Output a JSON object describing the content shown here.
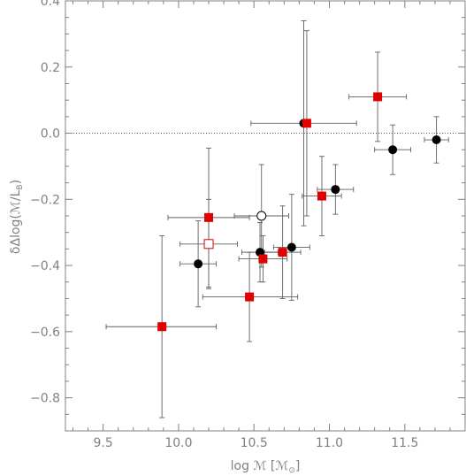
{
  "chart_data": {
    "type": "scatter",
    "title": "",
    "xlabel": "log ℳ [ℳ⊙]",
    "ylabel": "δΔlog(ℳ/L_B)",
    "xlim": [
      9.25,
      11.9
    ],
    "ylim": [
      -0.9,
      0.4
    ],
    "xticks": [
      9.5,
      10.0,
      10.5,
      11.0,
      11.5
    ],
    "xtick_labels": [
      "9.5",
      "10.0",
      "10.5",
      "11.0",
      "11.5"
    ],
    "yticks": [
      0.4,
      0.2,
      0.0,
      -0.2,
      -0.4,
      -0.6,
      -0.8
    ],
    "ytick_labels": [
      "0.4",
      "0.2",
      "0.0",
      "−0.2",
      "−0.4",
      "−0.6",
      "−0.8"
    ],
    "reference_line": {
      "y": 0.0,
      "style": "dotted"
    },
    "grid": false,
    "series": [
      {
        "marker": "filled-circle",
        "color": "#000000",
        "points": [
          {
            "x": 10.13,
            "y": -0.395,
            "xerr": [
              0.12,
              0.12
            ],
            "yerr": [
              0.13,
              0.13
            ]
          },
          {
            "x": 10.54,
            "y": -0.36,
            "xerr": [
              0.12,
              0.12
            ],
            "yerr": [
              0.09,
              0.09
            ]
          },
          {
            "x": 10.75,
            "y": -0.345,
            "xerr": [
              0.12,
              0.12
            ],
            "yerr": [
              0.16,
              0.16
            ]
          },
          {
            "x": 10.83,
            "y": 0.03,
            "xerr": [
              0.35,
              0.35
            ],
            "yerr": [
              0.31,
              0.31
            ]
          },
          {
            "x": 11.04,
            "y": -0.17,
            "xerr": [
              0.12,
              0.12
            ],
            "yerr": [
              0.075,
              0.075
            ]
          },
          {
            "x": 11.42,
            "y": -0.05,
            "xerr": [
              0.12,
              0.12
            ],
            "yerr": [
              0.075,
              0.075
            ]
          },
          {
            "x": 11.71,
            "y": -0.02,
            "xerr": [
              0.08,
              0.08
            ],
            "yerr": [
              0.07,
              0.07
            ]
          }
        ]
      },
      {
        "marker": "open-circle",
        "color": "#000000",
        "points": [
          {
            "x": 10.55,
            "y": -0.25,
            "xerr": [
              0.18,
              0.18
            ],
            "yerr": [
              0.155,
              0.155
            ]
          }
        ]
      },
      {
        "marker": "filled-square",
        "color": "#e00000",
        "points": [
          {
            "x": 9.89,
            "y": -0.585,
            "xerr": [
              0.37,
              0.36
            ],
            "yerr": [
              0.275,
              0.275
            ]
          },
          {
            "x": 10.2,
            "y": -0.255,
            "xerr": [
              0.27,
              0.27
            ],
            "yerr": [
              0.21,
              0.21
            ]
          },
          {
            "x": 10.47,
            "y": -0.495,
            "xerr": [
              0.31,
              0.32
            ],
            "yerr": [
              0.135,
              0.135
            ]
          },
          {
            "x": 10.56,
            "y": -0.38,
            "xerr": [
              0.16,
              0.16
            ],
            "yerr": [
              0.07,
              0.07
            ]
          },
          {
            "x": 10.69,
            "y": -0.36,
            "xerr": [
              0.12,
              0.12
            ],
            "yerr": [
              0.14,
              0.14
            ]
          },
          {
            "x": 10.85,
            "y": 0.03,
            "xerr": [
              0.0,
              0.0
            ],
            "yerr": [
              0.28,
              0.28
            ]
          },
          {
            "x": 10.95,
            "y": -0.19,
            "xerr": [
              0.13,
              0.13
            ],
            "yerr": [
              0.12,
              0.12
            ]
          },
          {
            "x": 11.32,
            "y": 0.11,
            "xerr": [
              0.19,
              0.19
            ],
            "yerr": [
              0.135,
              0.135
            ]
          }
        ]
      },
      {
        "marker": "open-square",
        "color": "#e00000",
        "points": [
          {
            "x": 10.2,
            "y": -0.335,
            "xerr": [
              0.19,
              0.19
            ],
            "yerr": [
              0.135,
              0.135
            ]
          }
        ]
      }
    ]
  },
  "colors": {
    "axis": "#808080",
    "errorbar": "#606060",
    "black_marker": "#000000",
    "red_marker": "#e00000"
  }
}
